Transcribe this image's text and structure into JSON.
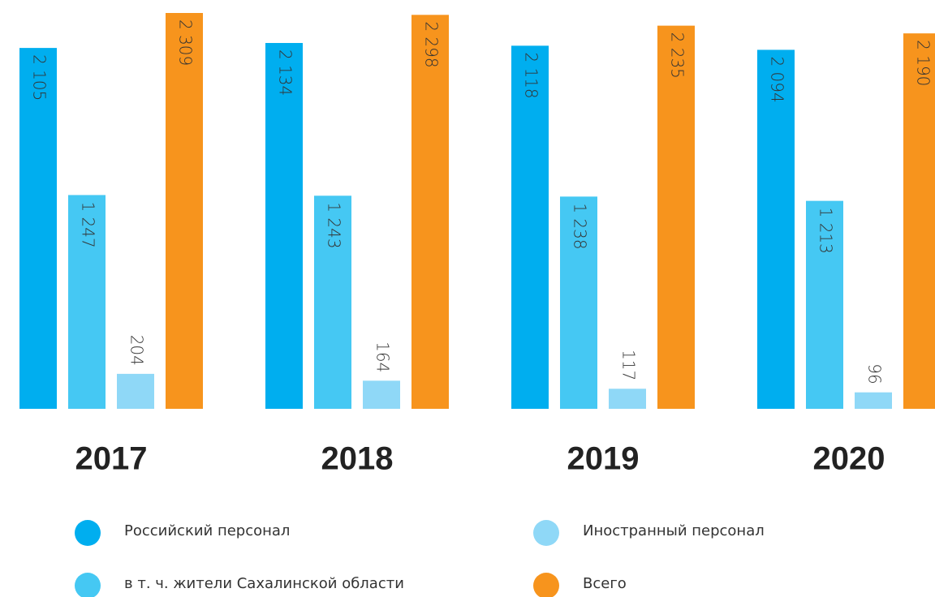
{
  "chart_data": {
    "type": "bar",
    "categories": [
      "2017",
      "2018",
      "2019",
      "2020"
    ],
    "series": [
      {
        "name": "Российский персонал",
        "color": "#00aeef",
        "values": [
          2105,
          2134,
          2118,
          2094
        ],
        "value_labels": [
          "2 105",
          "2 134",
          "2 118",
          "2 094"
        ]
      },
      {
        "name": "в т. ч. жители Сахалинской области",
        "color": "#45c8f3",
        "values": [
          1247,
          1243,
          1238,
          1213
        ],
        "value_labels": [
          "1 247",
          "1 243",
          "1 238",
          "1 213"
        ]
      },
      {
        "name": "Иностранный персонал",
        "color": "#8fd8f7",
        "values": [
          204,
          164,
          117,
          96
        ]
      },
      {
        "name": "Всего",
        "color": "#f7941d",
        "values": [
          2309,
          2298,
          2235,
          2190
        ],
        "value_labels": [
          "2 309",
          "2 298",
          "2 235",
          "2 190"
        ]
      }
    ]
  }
}
